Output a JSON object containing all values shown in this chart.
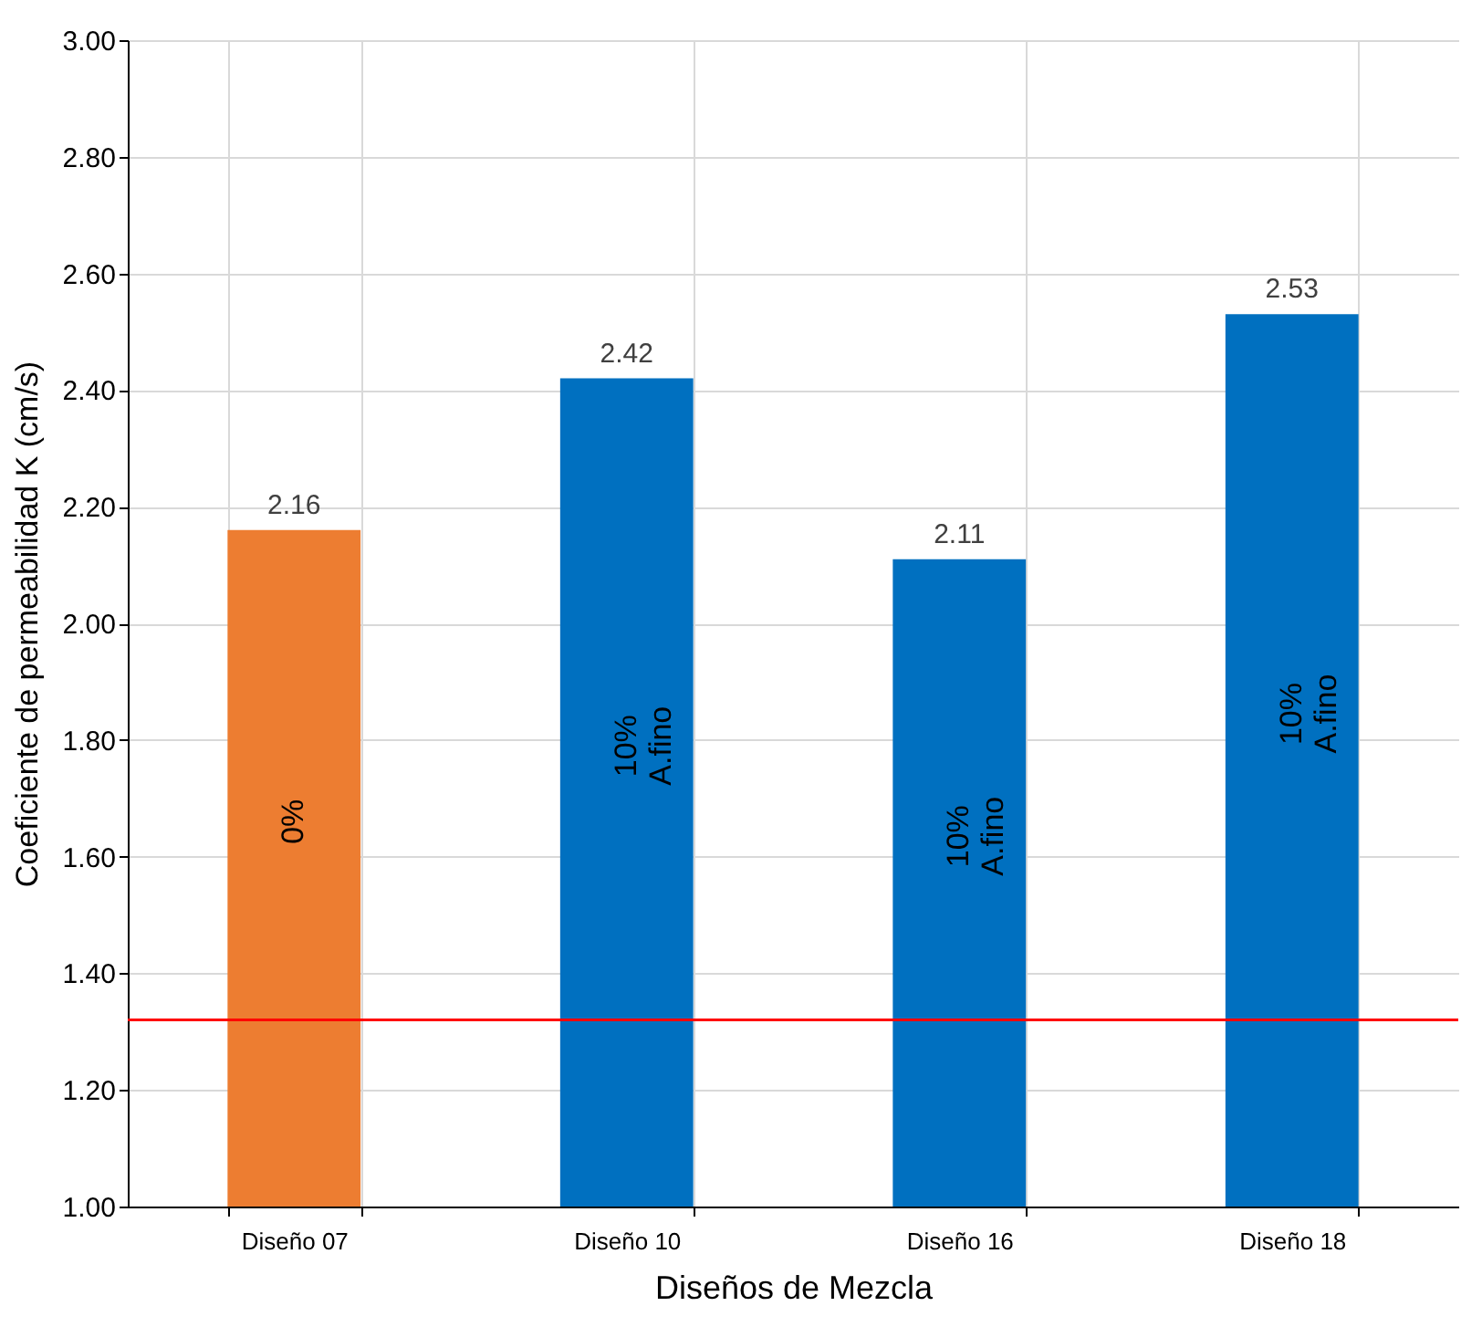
{
  "chart_data": {
    "type": "bar",
    "xlabel": "Diseños de Mezcla",
    "ylabel": "Coeficiente de permeabilidad K (cm/s)",
    "categories": [
      "Diseño 07",
      "Diseño 10",
      "Diseño 16",
      "Diseño 18"
    ],
    "values": [
      2.16,
      2.42,
      2.11,
      2.53
    ],
    "colors": [
      "#ed7d31",
      "#0070c0",
      "#0070c0",
      "#0070c0"
    ],
    "data_labels": true,
    "ylim": [
      1.0,
      3.0
    ],
    "yticks": [
      {
        "value": 1.0,
        "label": "1.00"
      },
      {
        "value": 1.2,
        "label": "1.20"
      },
      {
        "value": 1.4,
        "label": "1.40"
      },
      {
        "value": 1.6,
        "label": "1.60"
      },
      {
        "value": 1.8,
        "label": "1.80"
      },
      {
        "value": 2.0,
        "label": "2.00"
      },
      {
        "value": 2.2,
        "label": "2.20"
      },
      {
        "value": 2.4,
        "label": "2.40"
      },
      {
        "value": 2.6,
        "label": "2.60"
      },
      {
        "value": 2.8,
        "label": "2.80"
      },
      {
        "value": 3.0,
        "label": "3.00"
      }
    ],
    "grid": true,
    "ref_lines": [
      {
        "axis": "y",
        "value": 1.32,
        "color": "#ff0000"
      }
    ],
    "annotations": [
      "0%",
      "10%\nA.fino",
      "10%\nA.fino",
      "10%\nA.fino"
    ]
  }
}
